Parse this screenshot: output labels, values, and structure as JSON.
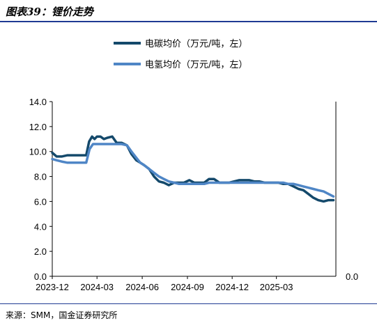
{
  "figure": {
    "title": "图表39：锂价走势",
    "source": "来源：SMM，国金证券研究所"
  },
  "chart_data": {
    "type": "line",
    "title": "",
    "xlabel": "",
    "ylabel": "",
    "ylim": [
      0,
      14
    ],
    "y_ticks": [
      "0.0",
      "2.0",
      "4.0",
      "6.0",
      "8.0",
      "10.0",
      "12.0",
      "14.0"
    ],
    "right_axis_tick": "0.0",
    "x_ticks": [
      "2023-12",
      "2024-03",
      "2024-06",
      "2024-09",
      "2024-12",
      "2025-03"
    ],
    "xlim": [
      "2023-12-01",
      "2025-06-30"
    ],
    "grid": false,
    "legend_position": "top-center",
    "series": [
      {
        "name": "电碳均价（万元/吨，左）",
        "color": "#14496b",
        "x": [
          "2023-12-01",
          "2023-12-10",
          "2023-12-20",
          "2024-01-01",
          "2024-01-15",
          "2024-02-01",
          "2024-02-08",
          "2024-02-14",
          "2024-02-20",
          "2024-02-25",
          "2024-03-01",
          "2024-03-08",
          "2024-03-15",
          "2024-03-22",
          "2024-04-01",
          "2024-04-10",
          "2024-04-20",
          "2024-05-01",
          "2024-05-10",
          "2024-05-20",
          "2024-05-28",
          "2024-06-05",
          "2024-06-15",
          "2024-06-25",
          "2024-07-05",
          "2024-07-15",
          "2024-07-25",
          "2024-08-05",
          "2024-08-15",
          "2024-08-25",
          "2024-09-05",
          "2024-09-15",
          "2024-09-25",
          "2024-10-05",
          "2024-10-15",
          "2024-10-25",
          "2024-11-05",
          "2024-11-15",
          "2024-11-25",
          "2024-12-05",
          "2024-12-15",
          "2024-12-25",
          "2025-01-05",
          "2025-01-15",
          "2025-01-25",
          "2025-02-05",
          "2025-02-15",
          "2025-02-25",
          "2025-03-05",
          "2025-03-15",
          "2025-03-25",
          "2025-04-05",
          "2025-04-15",
          "2025-04-25",
          "2025-05-05",
          "2025-05-15",
          "2025-05-25",
          "2025-06-05",
          "2025-06-15",
          "2025-06-25"
        ],
        "values": [
          9.9,
          9.6,
          9.6,
          9.7,
          9.7,
          9.7,
          9.7,
          10.8,
          11.2,
          11.0,
          11.2,
          11.2,
          11.0,
          11.1,
          11.2,
          10.7,
          10.7,
          10.5,
          9.8,
          9.3,
          9.1,
          8.9,
          8.6,
          8.0,
          7.6,
          7.5,
          7.3,
          7.5,
          7.5,
          7.5,
          7.7,
          7.5,
          7.5,
          7.5,
          7.8,
          7.8,
          7.5,
          7.5,
          7.5,
          7.6,
          7.7,
          7.7,
          7.7,
          7.6,
          7.6,
          7.5,
          7.5,
          7.5,
          7.5,
          7.4,
          7.4,
          7.2,
          7.0,
          6.9,
          6.6,
          6.3,
          6.1,
          6.0,
          6.1,
          6.1
        ]
      },
      {
        "name": "电氢均价（万元/吨，左）",
        "color": "#4f86c6",
        "x": [
          "2023-12-01",
          "2023-12-10",
          "2023-12-20",
          "2024-01-01",
          "2024-01-15",
          "2024-02-01",
          "2024-02-08",
          "2024-02-15",
          "2024-02-22",
          "2024-03-01",
          "2024-03-08",
          "2024-03-15",
          "2024-03-22",
          "2024-04-01",
          "2024-04-10",
          "2024-04-20",
          "2024-05-01",
          "2024-05-10",
          "2024-05-20",
          "2024-05-28",
          "2024-06-05",
          "2024-06-15",
          "2024-06-25",
          "2024-07-05",
          "2024-07-15",
          "2024-07-25",
          "2024-08-05",
          "2024-08-15",
          "2024-08-25",
          "2024-09-05",
          "2024-09-15",
          "2024-09-25",
          "2024-10-05",
          "2024-10-15",
          "2024-10-25",
          "2024-11-05",
          "2024-11-15",
          "2024-11-25",
          "2024-12-05",
          "2024-12-15",
          "2024-12-25",
          "2025-01-05",
          "2025-01-15",
          "2025-01-25",
          "2025-02-05",
          "2025-02-15",
          "2025-02-25",
          "2025-03-05",
          "2025-03-15",
          "2025-03-25",
          "2025-04-05",
          "2025-04-15",
          "2025-04-25",
          "2025-05-05",
          "2025-05-15",
          "2025-05-25",
          "2025-06-05",
          "2025-06-15",
          "2025-06-25"
        ],
        "values": [
          9.4,
          9.3,
          9.2,
          9.1,
          9.1,
          9.1,
          9.1,
          10.2,
          10.6,
          10.6,
          10.6,
          10.6,
          10.6,
          10.6,
          10.6,
          10.6,
          10.5,
          10.0,
          9.5,
          9.1,
          8.9,
          8.6,
          8.3,
          8.0,
          7.8,
          7.6,
          7.5,
          7.4,
          7.4,
          7.4,
          7.4,
          7.4,
          7.4,
          7.5,
          7.5,
          7.5,
          7.5,
          7.5,
          7.5,
          7.5,
          7.5,
          7.5,
          7.5,
          7.5,
          7.5,
          7.5,
          7.5,
          7.5,
          7.5,
          7.4,
          7.4,
          7.3,
          7.2,
          7.1,
          7.0,
          6.9,
          6.8,
          6.6,
          6.4
        ]
      }
    ]
  }
}
